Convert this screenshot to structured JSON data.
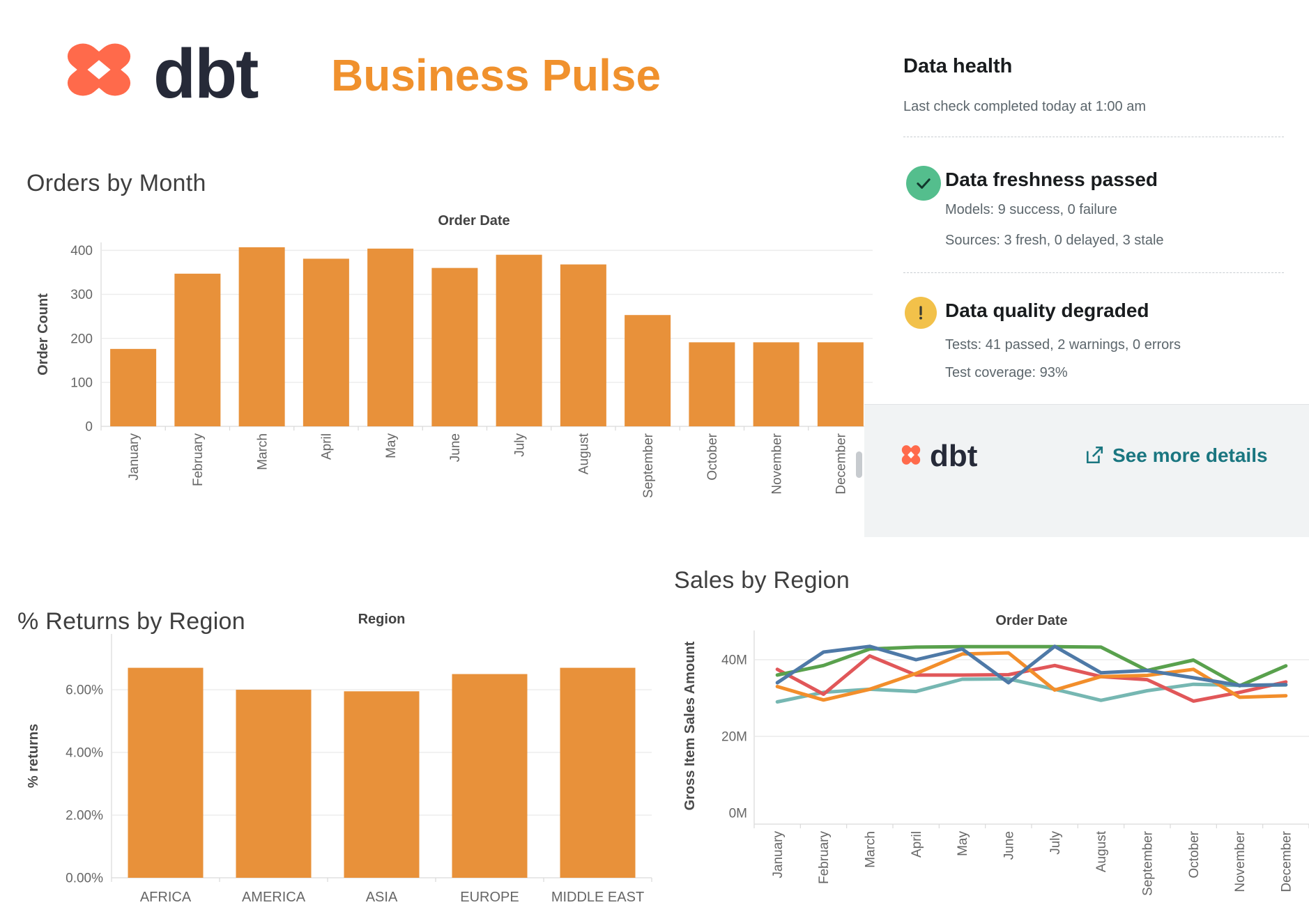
{
  "header": {
    "brand_wordmark": "dbt",
    "title": "Business Pulse"
  },
  "colors": {
    "bar_orange": "#E8913A",
    "title_orange": "#F0912D",
    "dbt_orange": "#FF6A4B",
    "dbt_navy": "#262A38",
    "link_teal": "#1A7680",
    "success_green": "#54BE8D",
    "warning_yellow": "#F2C14A",
    "series_blue": "#4E79A7",
    "series_orange": "#F28E2B",
    "series_red": "#E15759",
    "series_teal": "#76B7B2",
    "series_green": "#59A14D",
    "gridline": "#ECECEC",
    "axis_line": "#D9D9D9",
    "tick_text": "#666666"
  },
  "chart_data": [
    {
      "id": "orders_by_month",
      "type": "bar",
      "title": "Orders by Month",
      "axis_header": "Order Date",
      "ylabel": "Order Count",
      "categories": [
        "January",
        "February",
        "March",
        "April",
        "May",
        "June",
        "July",
        "August",
        "September",
        "October",
        "November",
        "December"
      ],
      "values": [
        176,
        347,
        407,
        381,
        404,
        360,
        390,
        368,
        253,
        191,
        191,
        191
      ],
      "yticks": [
        0,
        100,
        200,
        300,
        400
      ],
      "ytick_labels": [
        "0",
        "100",
        "200",
        "300",
        "400"
      ],
      "ylim": [
        0,
        418
      ],
      "bar_color": "#E8913A",
      "grid": true,
      "x_labels_rotated": true
    },
    {
      "id": "returns_by_region",
      "type": "bar",
      "title": "% Returns by Region",
      "axis_header": "Region",
      "ylabel": "% returns",
      "categories": [
        "AFRICA",
        "AMERICA",
        "ASIA",
        "EUROPE",
        "MIDDLE EAST"
      ],
      "values": [
        6.7,
        6.0,
        5.95,
        6.5,
        6.7
      ],
      "yticks": [
        0,
        2,
        4,
        6
      ],
      "ytick_labels": [
        "0.00%",
        "2.00%",
        "4.00%",
        "6.00%"
      ],
      "ylim": [
        0,
        7.78
      ],
      "bar_color": "#E8913A",
      "grid": true,
      "x_labels_rotated": false
    },
    {
      "id": "sales_by_region",
      "type": "line",
      "title": "Sales by Region",
      "axis_header": "Order Date",
      "ylabel": "Gross Item Sales Amount",
      "categories": [
        "January",
        "February",
        "March",
        "April",
        "May",
        "June",
        "July",
        "August",
        "September",
        "October",
        "November",
        "December"
      ],
      "yticks": [
        0,
        20,
        40
      ],
      "ytick_labels": [
        "0M",
        "20M",
        "40M"
      ],
      "ylim": [
        -2.9,
        47.6
      ],
      "grid": true,
      "x_labels_rotated": true,
      "series": [
        {
          "name": "series-teal",
          "color": "#76B7B2",
          "values": [
            29,
            31.5,
            32.3,
            31.7,
            34.9,
            35,
            32.3,
            29.4,
            31.9,
            33.6,
            33.3,
            33.4
          ]
        },
        {
          "name": "series-red",
          "color": "#E15759",
          "values": [
            37.5,
            31,
            41,
            36,
            36,
            36.1,
            38.5,
            35.6,
            34.8,
            29.2,
            31.5,
            34.2
          ]
        },
        {
          "name": "series-orange",
          "color": "#F28E2B",
          "values": [
            33,
            29.5,
            32.3,
            36.4,
            41.5,
            41.8,
            32.1,
            35.6,
            35.9,
            37.5,
            30.2,
            30.6
          ]
        },
        {
          "name": "series-green",
          "color": "#59A14D",
          "values": [
            36,
            38.5,
            42.8,
            43.3,
            43.4,
            43.4,
            43.4,
            43.3,
            37.2,
            39.9,
            33.2,
            38.4
          ]
        },
        {
          "name": "series-blue",
          "color": "#4E79A7",
          "values": [
            34,
            42,
            43.5,
            40,
            42.8,
            34,
            43.5,
            36.6,
            37.2,
            35.3,
            33.3,
            33.5
          ]
        }
      ]
    }
  ],
  "data_health": {
    "title": "Data health",
    "last_check": "Last check completed today at 1:00 am",
    "items": [
      {
        "status": "success",
        "icon": "check-icon",
        "title": "Data freshness passed",
        "lines": [
          "Models: 9 success, 0 failure",
          "Sources: 3 fresh, 0 delayed, 3 stale"
        ]
      },
      {
        "status": "warning",
        "icon": "warning-icon",
        "title": "Data quality degraded",
        "lines": [
          "Tests: 41 passed, 2 warnings, 0 errors",
          "Test coverage: 93%"
        ]
      }
    ],
    "footer": {
      "brand_wordmark": "dbt",
      "link_label": "See more details"
    }
  }
}
